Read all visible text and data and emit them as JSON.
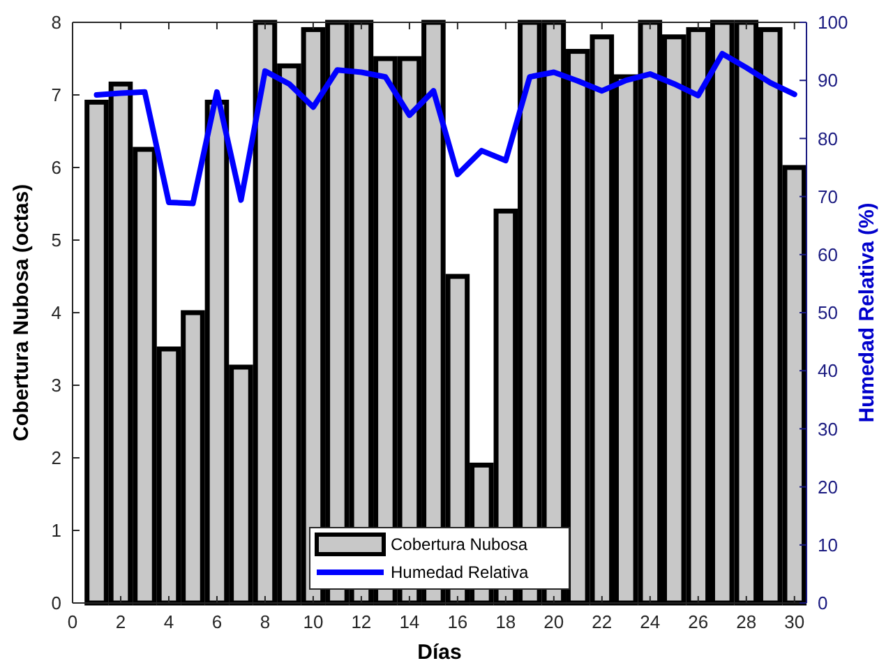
{
  "chart_data": {
    "type": "bar",
    "xlabel": "Días",
    "ylabel": "Cobertura Nubosa (octas)",
    "y2label": "Humedad Relativa (%)",
    "x": [
      1,
      2,
      3,
      4,
      5,
      6,
      7,
      8,
      9,
      10,
      11,
      12,
      13,
      14,
      15,
      16,
      17,
      18,
      19,
      20,
      21,
      22,
      23,
      24,
      25,
      26,
      27,
      28,
      29,
      30
    ],
    "xlim": [
      0,
      30.5
    ],
    "xticks": [
      0,
      2,
      4,
      6,
      8,
      10,
      12,
      14,
      16,
      18,
      20,
      22,
      24,
      26,
      28,
      30
    ],
    "ylim": [
      0,
      8
    ],
    "yticks": [
      0,
      1,
      2,
      3,
      4,
      5,
      6,
      7,
      8
    ],
    "y2lim": [
      0,
      100
    ],
    "y2ticks": [
      0,
      10,
      20,
      30,
      40,
      50,
      60,
      70,
      80,
      90,
      100
    ],
    "legend": "bottom",
    "series": [
      {
        "name": "Cobertura Nubosa",
        "color": "#c8c8c8",
        "values": [
          6.9,
          7.15,
          6.25,
          3.5,
          4.0,
          6.9,
          3.25,
          8,
          7.4,
          7.9,
          8,
          8,
          7.5,
          7.5,
          8,
          4.5,
          1.9,
          5.4,
          8,
          8,
          7.6,
          7.8,
          7.25,
          8,
          7.8,
          7.9,
          8,
          8,
          7.9,
          6.0
        ]
      },
      {
        "name": "Humedad Relativa",
        "type": "line",
        "axis": "y2",
        "color": "#0000ff",
        "values": [
          87.5,
          87.8,
          88,
          69,
          68.8,
          88,
          69.4,
          91.6,
          89.4,
          85.4,
          91.8,
          91.4,
          90.6,
          84,
          88.2,
          73.8,
          77.9,
          76.2,
          90.6,
          91.4,
          89.9,
          88.2,
          90,
          91.1,
          89.4,
          87.4,
          94.6,
          92.2,
          89.6,
          87.6
        ]
      }
    ]
  }
}
